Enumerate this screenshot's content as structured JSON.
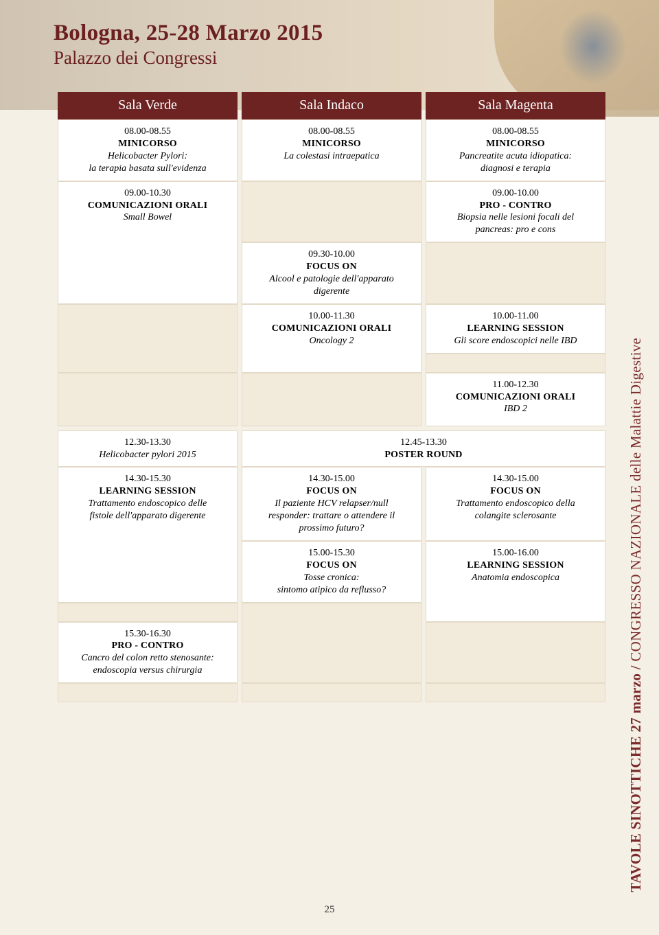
{
  "colors": {
    "header_text": "#6b1f1f",
    "th_bg": "#6e2323",
    "th_text": "#ffffff",
    "cell_bg": "#ffffff",
    "cell_border": "#e3d9c6",
    "empty_bg": "#f2ebdb",
    "page_bg": "#f5f0e6",
    "side_red": "#7a2a2a",
    "side_dark": "#3a3a3a"
  },
  "header": {
    "title": "Bologna, 25-28 Marzo 2015",
    "subtitle": "Palazzo dei Congressi"
  },
  "columns": {
    "verde": "Sala Verde",
    "indaco": "Sala Indaco",
    "magenta": "Sala Magenta"
  },
  "cells": {
    "a1": {
      "time": "08.00-08.55",
      "cat": "MINICORSO",
      "desc": "Helicobacter Pylori:\nla terapia basata sull'evidenza"
    },
    "b1": {
      "time": "08.00-08.55",
      "cat": "MINICORSO",
      "desc": "La colestasi intraepatica"
    },
    "c1": {
      "time": "08.00-08.55",
      "cat": "MINICORSO",
      "desc": "Pancreatite acuta idiopatica:\ndiagnosi e terapia"
    },
    "a2": {
      "time": "09.00-10.30",
      "cat": "COMUNICAZIONI ORALI",
      "desc": "Small Bowel"
    },
    "c2": {
      "time": "09.00-10.00",
      "cat": "PRO - CONTRO",
      "desc": "Biopsia nelle lesioni focali del\npancreas: pro e cons"
    },
    "b3": {
      "time": "09.30-10.00",
      "cat": "FOCUS ON",
      "desc": "Alcool e patologie dell'apparato\ndigerente"
    },
    "b4": {
      "time": "10.00-11.30",
      "cat": "COMUNICAZIONI ORALI",
      "desc": "Oncology 2"
    },
    "c4": {
      "time": "10.00-11.00",
      "cat": "LEARNING SESSION",
      "desc": "Gli score endoscopici nelle IBD"
    },
    "c5": {
      "time": "11.00-12.30",
      "cat": "COMUNICAZIONI ORALI",
      "desc": "IBD 2"
    },
    "a6": {
      "time": "12.30-13.30",
      "cat": "",
      "desc": "Helicobacter pylori 2015"
    },
    "bc6": {
      "time": "12.45-13.30",
      "cat": "POSTER ROUND",
      "desc": ""
    },
    "a7": {
      "time": "14.30-15.30",
      "cat": "LEARNING SESSION",
      "desc": "Trattamento endoscopico delle\nfistole dell'apparato digerente"
    },
    "b7": {
      "time": "14.30-15.00",
      "cat": "FOCUS ON",
      "desc": "Il paziente HCV relapser/null\nresponder: trattare o attendere il\nprossimo futuro?"
    },
    "c7": {
      "time": "14.30-15.00",
      "cat": "FOCUS ON",
      "desc": "Trattamento endoscopico della\ncolangite sclerosante"
    },
    "b8": {
      "time": "15.00-15.30",
      "cat": "FOCUS ON",
      "desc": "Tosse cronica:\nsintomo atipico da reflusso?"
    },
    "c8": {
      "time": "15.00-16.00",
      "cat": "LEARNING SESSION",
      "desc": "Anatomia endoscopica"
    },
    "a9": {
      "time": "15.30-16.30",
      "cat": "PRO - CONTRO",
      "desc": "Cancro del colon retto stenosante:\nendoscopia versus chirurgia"
    }
  },
  "side": {
    "red": "TAVOLE SINOTTICHE 27 marzo /",
    "dark": " CONGRESSO NAZIONALE delle Malattie Digestive"
  },
  "page_number": "25"
}
